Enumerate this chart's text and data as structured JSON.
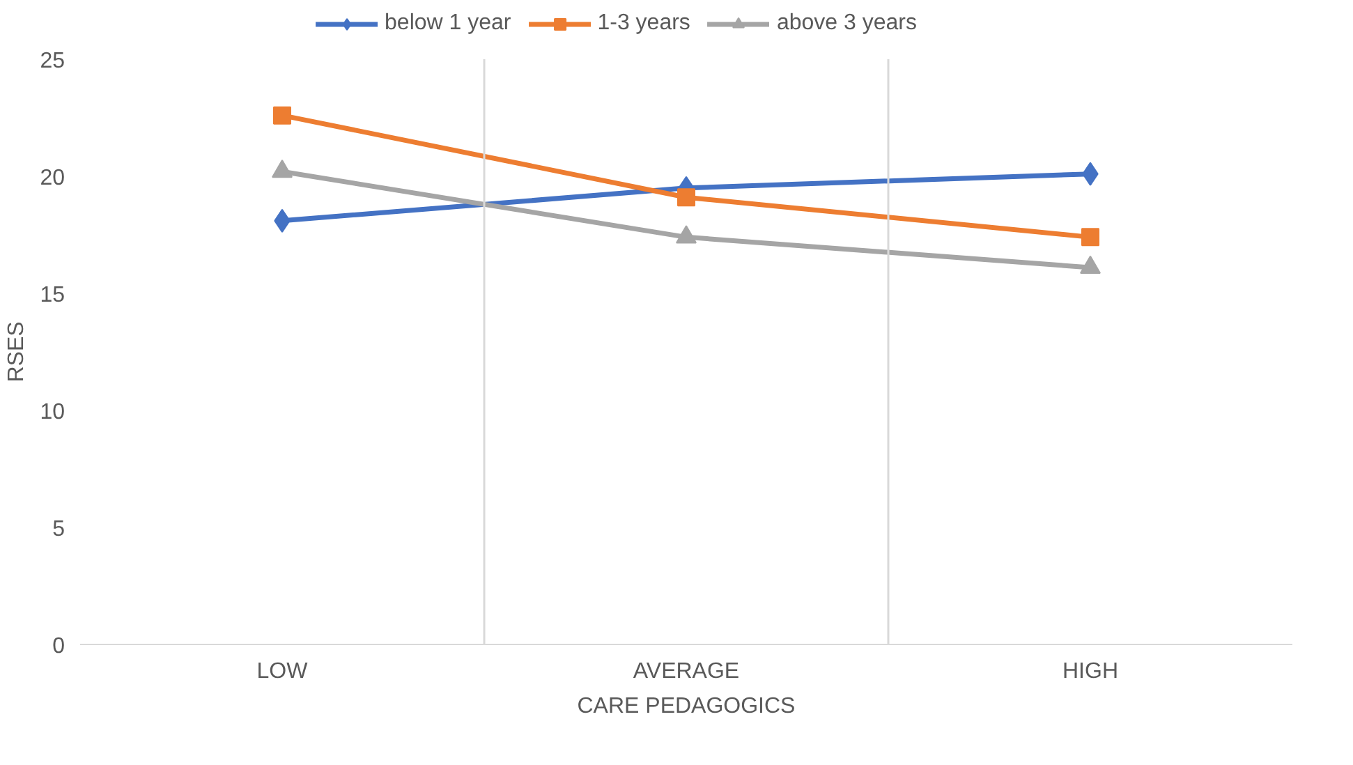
{
  "chart_data": {
    "type": "line",
    "xlabel": "CARE PEDAGOGICS",
    "ylabel": "RSES",
    "categories": [
      "LOW",
      "AVERAGE",
      "HIGH"
    ],
    "series": [
      {
        "name": "below 1 year",
        "color": "#4472c4",
        "marker": "diamond",
        "values": [
          18.1,
          19.5,
          20.1
        ]
      },
      {
        "name": "1-3 years",
        "color": "#ed7d31",
        "marker": "square",
        "values": [
          22.6,
          19.1,
          17.4
        ]
      },
      {
        "name": "above 3 years",
        "color": "#a5a5a5",
        "marker": "triangle",
        "values": [
          20.2,
          17.4,
          16.1
        ]
      }
    ],
    "ylim": [
      0,
      25
    ],
    "yticks": [
      0,
      5,
      10,
      15,
      20,
      25
    ],
    "grid": "x",
    "legend": "top"
  }
}
